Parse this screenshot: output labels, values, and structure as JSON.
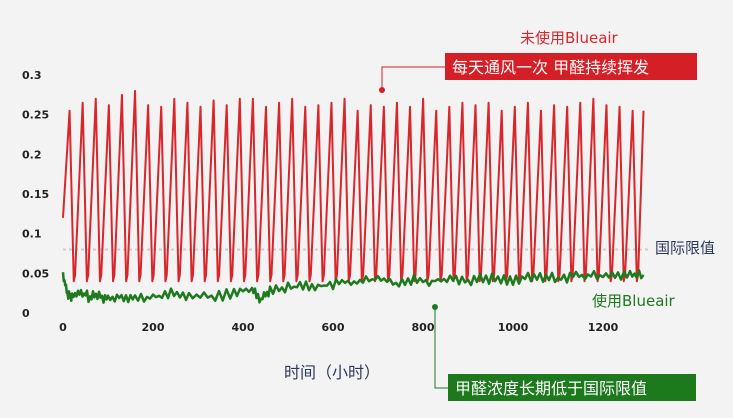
{
  "chart_data": {
    "type": "line",
    "title": "",
    "xlabel": "时间（小时）",
    "ylabel": "",
    "xlim": [
      0,
      1320
    ],
    "ylim": [
      0,
      0.3
    ],
    "x_ticks": [
      "0",
      "200",
      "400",
      "600",
      "800",
      "1000",
      "1200"
    ],
    "y_ticks": [
      "0",
      "0.05",
      "0.1",
      "0.15",
      "0.2",
      "0.25",
      "0.3"
    ],
    "grid": false,
    "colors": {
      "unused": "#d9262b",
      "used": "#1f7a1f",
      "limit": "#c9ced4",
      "limit_label": "#2b3a5a",
      "red_box": "#d51f26",
      "green_box": "#1c7a1c"
    },
    "reference_line": {
      "y": 0.08,
      "label": "国际限值"
    },
    "series": [
      {
        "name": "未使用Blueair",
        "period": 29.1,
        "x": [
          0,
          14.6,
          43.7,
          72.8,
          101.9,
          131.0,
          160.1,
          189.2,
          218.3,
          247.4,
          276.5,
          305.6,
          334.7,
          363.8,
          392.9,
          422.0,
          451.1,
          480.2,
          509.3,
          538.4,
          567.5,
          596.6,
          625.7,
          654.8,
          683.9,
          713.0,
          742.1,
          771.2,
          800.3,
          829.4,
          858.5,
          887.6,
          916.7,
          945.8,
          974.9,
          1004.0,
          1033.1,
          1062.2,
          1091.3,
          1120.4,
          1149.5,
          1178.6,
          1207.7,
          1236.8,
          1265.9,
          1290
        ],
        "y": [
          0.12,
          0.255,
          0.265,
          0.27,
          0.262,
          0.275,
          0.28,
          0.262,
          0.26,
          0.27,
          0.265,
          0.26,
          0.268,
          0.262,
          0.27,
          0.27,
          0.26,
          0.265,
          0.27,
          0.26,
          0.262,
          0.265,
          0.27,
          0.255,
          0.262,
          0.26,
          0.265,
          0.26,
          0.27,
          0.255,
          0.26,
          0.265,
          0.262,
          0.265,
          0.255,
          0.26,
          0.265,
          0.255,
          0.262,
          0.26,
          0.265,
          0.27,
          0.262,
          0.26,
          0.255,
          0.255
        ],
        "trough": 0.04
      },
      {
        "name": "使用Blueair",
        "x": [
          0,
          10,
          20,
          40,
          60,
          80,
          100,
          130,
          160,
          200,
          240,
          280,
          330,
          380,
          420,
          440,
          460,
          500,
          540,
          580,
          620,
          660,
          700,
          740,
          780,
          820,
          860,
          900,
          940,
          980,
          1020,
          1060,
          1100,
          1140,
          1180,
          1220,
          1260,
          1290
        ],
        "y": [
          0.048,
          0.025,
          0.02,
          0.025,
          0.02,
          0.022,
          0.018,
          0.022,
          0.018,
          0.02,
          0.024,
          0.022,
          0.02,
          0.025,
          0.03,
          0.018,
          0.03,
          0.032,
          0.035,
          0.034,
          0.038,
          0.04,
          0.042,
          0.038,
          0.043,
          0.04,
          0.044,
          0.041,
          0.044,
          0.042,
          0.043,
          0.045,
          0.044,
          0.047,
          0.046,
          0.05,
          0.047,
          0.048
        ],
        "jitter": 0.007
      }
    ],
    "annotations": {
      "unused_label": "未使用Blueair",
      "unused_box": "每天通风一次 甲醛持续挥发",
      "used_label": "使用Blueair",
      "used_box": "甲醛浓度长期低于国际限值"
    }
  }
}
